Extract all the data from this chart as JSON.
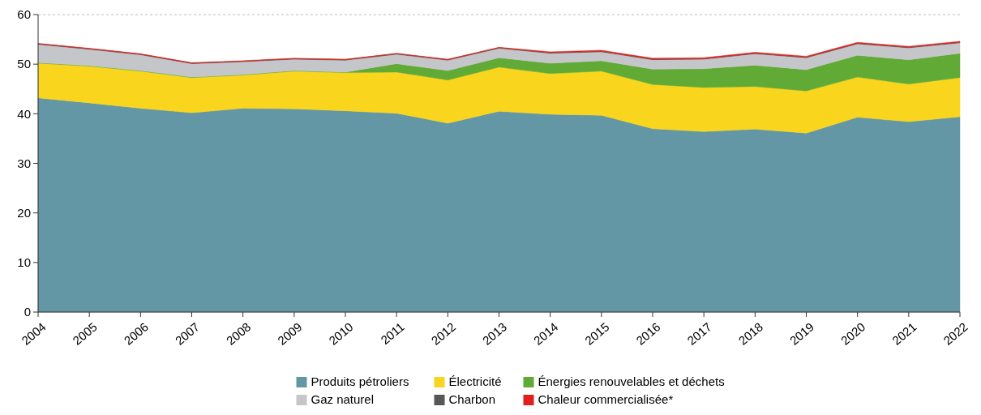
{
  "chart_data": {
    "type": "area",
    "stacked": true,
    "categories": [
      "2004",
      "2005",
      "2006",
      "2007",
      "2008",
      "2009",
      "2010",
      "2011",
      "2012",
      "2013",
      "2014",
      "2015",
      "2016",
      "2017",
      "2018",
      "2019",
      "2020",
      "2021",
      "2022"
    ],
    "series": [
      {
        "name": "Produits pétroliers",
        "color": "#6497a5",
        "values": [
          43.2,
          42.2,
          41.1,
          40.2,
          41.1,
          41.0,
          40.6,
          40.1,
          38.1,
          40.5,
          39.9,
          39.7,
          37.0,
          36.4,
          36.9,
          36.1,
          39.3,
          38.4,
          39.4
        ]
      },
      {
        "name": "Électricité",
        "color": "#f9d51d",
        "values": [
          7.0,
          7.4,
          7.5,
          7.1,
          6.7,
          7.6,
          7.7,
          8.3,
          8.7,
          8.9,
          8.2,
          8.9,
          8.9,
          8.9,
          8.6,
          8.5,
          8.1,
          7.6,
          7.9
        ]
      },
      {
        "name": "Énergies renouvelables et déchets",
        "color": "#62aa36",
        "values": [
          0.1,
          0.1,
          0.1,
          0.1,
          0.1,
          0.1,
          0.1,
          1.7,
          1.9,
          1.9,
          2.1,
          2.1,
          3.1,
          3.8,
          4.3,
          4.3,
          4.4,
          4.9,
          4.9
        ]
      },
      {
        "name": "Gaz naturel",
        "color": "#c5c6ca",
        "values": [
          3.7,
          3.3,
          3.2,
          2.7,
          2.6,
          2.3,
          2.4,
          1.9,
          2.1,
          1.9,
          2.0,
          1.8,
          1.9,
          1.9,
          2.3,
          2.4,
          2.3,
          2.4,
          2.1
        ]
      },
      {
        "name": "Charbon",
        "color": "#555759",
        "values": [
          0.1,
          0.1,
          0.1,
          0.1,
          0.1,
          0.1,
          0.1,
          0.1,
          0.1,
          0.1,
          0.1,
          0.1,
          0.1,
          0.1,
          0.1,
          0.1,
          0.1,
          0.1,
          0.1
        ]
      },
      {
        "name": "Chaleur commercialisée*",
        "color": "#e0201b",
        "values": [
          0.1,
          0.1,
          0.1,
          0.1,
          0.1,
          0.1,
          0.1,
          0.1,
          0.1,
          0.1,
          0.2,
          0.2,
          0.2,
          0.2,
          0.2,
          0.2,
          0.2,
          0.2,
          0.2
        ]
      }
    ],
    "ylim": [
      0,
      60
    ],
    "yticks": [
      0,
      10,
      20,
      30,
      40,
      50,
      60
    ],
    "ref_lines": [
      {
        "axis": "y",
        "value": 60,
        "color": "#bbbbbb",
        "line_style": "dashed"
      }
    ],
    "legend": "bottom"
  }
}
